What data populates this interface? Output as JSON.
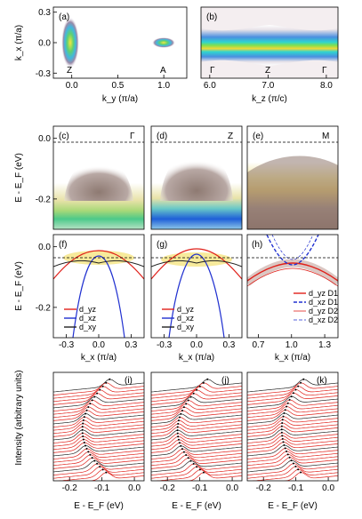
{
  "chart_data": [
    {
      "panel": "a",
      "label": "(a)",
      "type": "heatmap",
      "xlabel": "k_y (π/a)",
      "ylabel": "k_x (π/a)",
      "xlim": [
        -0.2,
        1.25
      ],
      "ylim": [
        -0.35,
        0.35
      ],
      "xticks": [
        "0.0",
        "0.5",
        "1.0"
      ],
      "yticks": [
        "0.3",
        "0.0",
        "-0.3"
      ],
      "annotations": [
        "Z",
        "A"
      ]
    },
    {
      "panel": "b",
      "label": "(b)",
      "type": "heatmap",
      "xlabel": "k_z (π/c)",
      "xlim": [
        5.85,
        8.2
      ],
      "xticks": [
        "6.0",
        "7.0",
        "8.0"
      ],
      "annotations": [
        "Γ",
        "Z",
        "Γ"
      ]
    },
    {
      "panel": "c",
      "label": "(c)",
      "type": "heatmap",
      "ylabel": "E - E_F (eV)",
      "ylim": [
        -0.3,
        0.04
      ],
      "yticks": [
        "0.0",
        "-0.2"
      ],
      "annotations": [
        "Γ"
      ]
    },
    {
      "panel": "d",
      "label": "(d)",
      "type": "heatmap",
      "annotations": [
        "Z"
      ]
    },
    {
      "panel": "e",
      "label": "(e)",
      "type": "heatmap",
      "annotations": [
        "M"
      ]
    },
    {
      "panel": "f",
      "label": "(f)",
      "type": "line",
      "xlabel": "k_x (π/a)",
      "ylabel": "E - E_F (eV)",
      "xlim": [
        -0.42,
        0.42
      ],
      "ylim": [
        -0.3,
        0.04
      ],
      "xticks": [
        "-0.3",
        "0.0",
        "0.3"
      ],
      "yticks": [
        "0.0",
        "-0.2"
      ],
      "legend": [
        {
          "name": "d_yz",
          "color": "#e0201a"
        },
        {
          "name": "d_xz",
          "color": "#2030d0"
        },
        {
          "name": "d_xy",
          "color": "#222222"
        }
      ]
    },
    {
      "panel": "g",
      "label": "(g)",
      "type": "line",
      "xlabel": "k_x (π/a)",
      "xlim": [
        -0.42,
        0.42
      ],
      "xticks": [
        "-0.3",
        "0.0",
        "0.3"
      ],
      "legend": [
        {
          "name": "d_yz",
          "color": "#e0201a"
        },
        {
          "name": "d_xz",
          "color": "#2030d0"
        },
        {
          "name": "d_xy",
          "color": "#222222"
        }
      ]
    },
    {
      "panel": "h",
      "label": "(h)",
      "type": "line",
      "xlabel": "k_x (π/a)",
      "xlim": [
        0.6,
        1.42
      ],
      "xticks": [
        "0.7",
        "1.0",
        "1.3"
      ],
      "legend": [
        {
          "name": "d_yz D1",
          "color": "#e0201a",
          "style": "solid"
        },
        {
          "name": "d_xz D1",
          "color": "#2030d0",
          "style": "dashed"
        },
        {
          "name": "d_yz D2",
          "color": "#e0201a",
          "style": "thin"
        },
        {
          "name": "d_xz D2",
          "color": "#2030d0",
          "style": "thin-dashed"
        }
      ]
    },
    {
      "panel": "i",
      "label": "(i)",
      "type": "line",
      "xlabel": "E - E_F (eV)",
      "ylabel": "Intensity (arbitrary units)",
      "xlim": [
        -0.25,
        0.03
      ],
      "xticks": [
        "-0.2",
        "-0.1",
        "0.0"
      ]
    },
    {
      "panel": "j",
      "label": "(j)",
      "type": "line",
      "xlabel": "E - E_F (eV)",
      "xlim": [
        -0.25,
        0.03
      ],
      "xticks": [
        "-0.2",
        "-0.1",
        "0.0"
      ]
    },
    {
      "panel": "k",
      "label": "(k)",
      "type": "line",
      "xlabel": "E - E_F (eV)",
      "xlim": [
        -0.25,
        0.03
      ],
      "xticks": [
        "-0.2",
        "-0.1",
        "0.0"
      ]
    }
  ]
}
